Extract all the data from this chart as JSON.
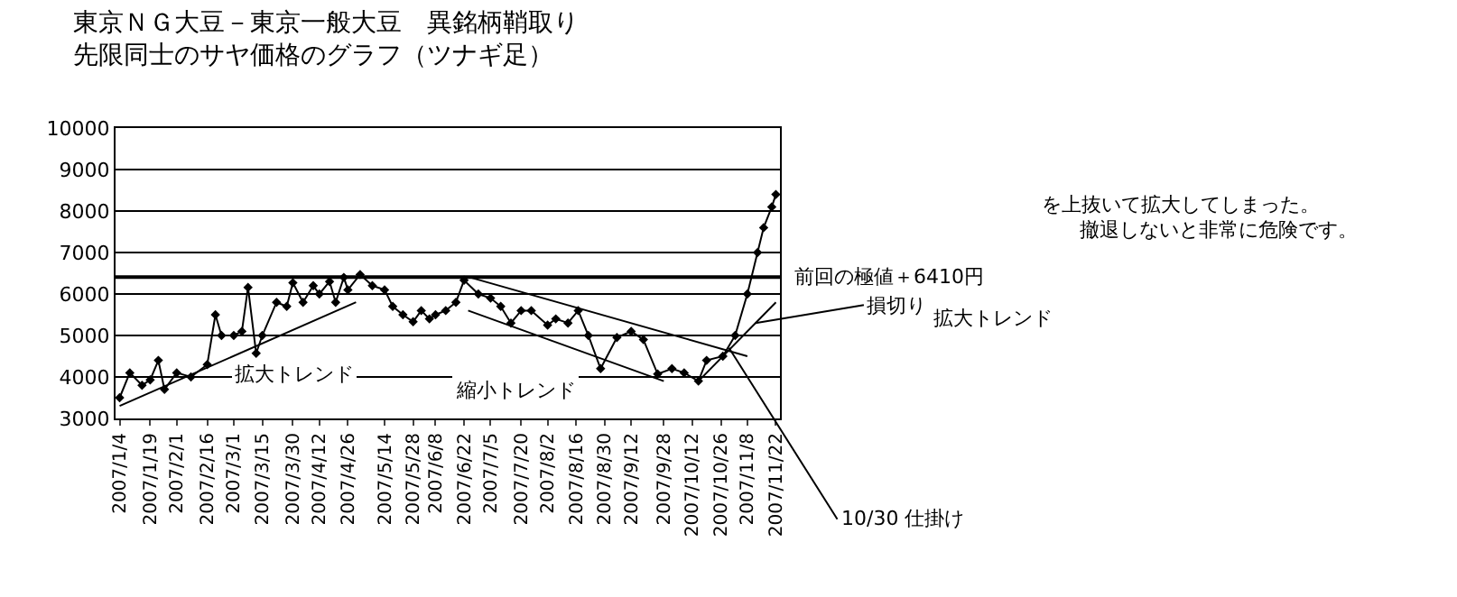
{
  "chart_data": {
    "type": "line",
    "title": "東京ＮＧ大豆－東京一般大豆　異銘柄鞘取り",
    "subtitle": "先限同士のサヤ価格のグラフ（ツナギ足）",
    "x": [
      "2007-01-04",
      "2007-01-09",
      "2007-01-15",
      "2007-01-19",
      "2007-01-23",
      "2007-01-26",
      "2007-02-01",
      "2007-02-08",
      "2007-02-16",
      "2007-02-20",
      "2007-02-23",
      "2007-03-01",
      "2007-03-05",
      "2007-03-08",
      "2007-03-12",
      "2007-03-15",
      "2007-03-22",
      "2007-03-27",
      "2007-03-30",
      "2007-04-04",
      "2007-04-09",
      "2007-04-12",
      "2007-04-17",
      "2007-04-20",
      "2007-04-24",
      "2007-04-26",
      "2007-05-02",
      "2007-05-08",
      "2007-05-14",
      "2007-05-18",
      "2007-05-23",
      "2007-05-28",
      "2007-06-01",
      "2007-06-05",
      "2007-06-08",
      "2007-06-13",
      "2007-06-18",
      "2007-06-22",
      "2007-06-29",
      "2007-07-05",
      "2007-07-10",
      "2007-07-15",
      "2007-07-20",
      "2007-07-25",
      "2007-08-02",
      "2007-08-06",
      "2007-08-12",
      "2007-08-17",
      "2007-08-22",
      "2007-08-28",
      "2007-09-05",
      "2007-09-12",
      "2007-09-18",
      "2007-09-25",
      "2007-10-02",
      "2007-10-08",
      "2007-10-15",
      "2007-10-19",
      "2007-10-27",
      "2007-11-02",
      "2007-11-08",
      "2007-11-13",
      "2007-11-16",
      "2007-11-20",
      "2007-11-22"
    ],
    "series": [
      {
        "color": "#000000",
        "values": [
          3500,
          4100,
          3800,
          3930,
          4400,
          3700,
          4100,
          4000,
          4300,
          5500,
          5000,
          5000,
          5100,
          6160,
          4570,
          5000,
          5800,
          5700,
          6270,
          5800,
          6200,
          6000,
          6300,
          5800,
          6400,
          6100,
          6470,
          6200,
          6100,
          5700,
          5500,
          5330,
          5600,
          5400,
          5500,
          5600,
          5800,
          6330,
          6000,
          5900,
          5700,
          5300,
          5600,
          5600,
          5250,
          5400,
          5300,
          5600,
          5000,
          4200,
          4950,
          5100,
          4900,
          4070,
          4200,
          4100,
          3900,
          4400,
          4500,
          5000,
          6000,
          7000,
          7600,
          8100,
          8400
        ]
      },
      {
        "type": "line",
        "color": "#000000",
        "marker": "none",
        "x": [
          "2007-01-04",
          "2007-04-30"
        ],
        "values": [
          3300,
          5800
        ]
      },
      {
        "type": "line",
        "color": "#000000",
        "marker": "none",
        "x": [
          "2007-06-25",
          "2007-11-08"
        ],
        "values": [
          6400,
          4500
        ]
      },
      {
        "type": "line",
        "color": "#000000",
        "marker": "none",
        "x": [
          "2007-06-24",
          "2007-09-28"
        ],
        "values": [
          5600,
          3900
        ]
      },
      {
        "type": "line",
        "color": "#000000",
        "marker": "none",
        "x": [
          "2007-10-15",
          "2007-11-22"
        ],
        "values": [
          3900,
          5800
        ]
      }
    ],
    "ref_lines": [
      {
        "axis": "y",
        "value": 6410,
        "label": "前回の極値＋6410円",
        "color": "#000000"
      }
    ],
    "annotations": [
      "拡大トレンド",
      "縮小トレンド",
      {
        "text": "損切り",
        "x": "2007-11-12",
        "y": 5300
      },
      {
        "text": "10/30 仕掛け",
        "x": "2007-10-30",
        "y": 4700
      },
      "を上抜いて拡大してしまった。",
      "撤退しないと非常に危険です。",
      "拡大トレンド"
    ],
    "xlim": [
      "2007-01-02",
      "2007-11-24"
    ],
    "xticks": [
      {
        "value": "2007-01-04",
        "label": "2007/1/4"
      },
      {
        "value": "2007-01-19",
        "label": "2007/1/19"
      },
      {
        "value": "2007-02-01",
        "label": "2007/2/1"
      },
      {
        "value": "2007-02-16",
        "label": "2007/2/16"
      },
      {
        "value": "2007-03-01",
        "label": "2007/3/1"
      },
      {
        "value": "2007-03-15",
        "label": "2007/3/15"
      },
      {
        "value": "2007-03-30",
        "label": "2007/3/30"
      },
      {
        "value": "2007-04-12",
        "label": "2007/4/12"
      },
      {
        "value": "2007-04-26",
        "label": "2007/4/26"
      },
      {
        "value": "2007-05-14",
        "label": "2007/5/14"
      },
      {
        "value": "2007-05-28",
        "label": "2007/5/28"
      },
      {
        "value": "2007-06-08",
        "label": "2007/6/8"
      },
      {
        "value": "2007-06-22",
        "label": "2007/6/22"
      },
      {
        "value": "2007-07-05",
        "label": "2007/7/5"
      },
      {
        "value": "2007-07-20",
        "label": "2007/7/20"
      },
      {
        "value": "2007-08-02",
        "label": "2007/8/2"
      },
      {
        "value": "2007-08-16",
        "label": "2007/8/16"
      },
      {
        "value": "2007-08-30",
        "label": "2007/8/30"
      },
      {
        "value": "2007-09-12",
        "label": "2007/9/12"
      },
      {
        "value": "2007-09-28",
        "label": "2007/9/28"
      },
      {
        "value": "2007-10-12",
        "label": "2007/10/12"
      },
      {
        "value": "2007-10-26",
        "label": "2007/10/26"
      },
      {
        "value": "2007-11-08",
        "label": "2007/11/8"
      },
      {
        "value": "2007-11-22",
        "label": "2007/11/22"
      }
    ],
    "ylim": [
      3000,
      10000
    ],
    "yticks": [
      3000,
      4000,
      5000,
      6000,
      7000,
      8000,
      9000,
      10000
    ],
    "grid": "y",
    "legend": false,
    "marker": "diamond",
    "line_style": "solid"
  }
}
